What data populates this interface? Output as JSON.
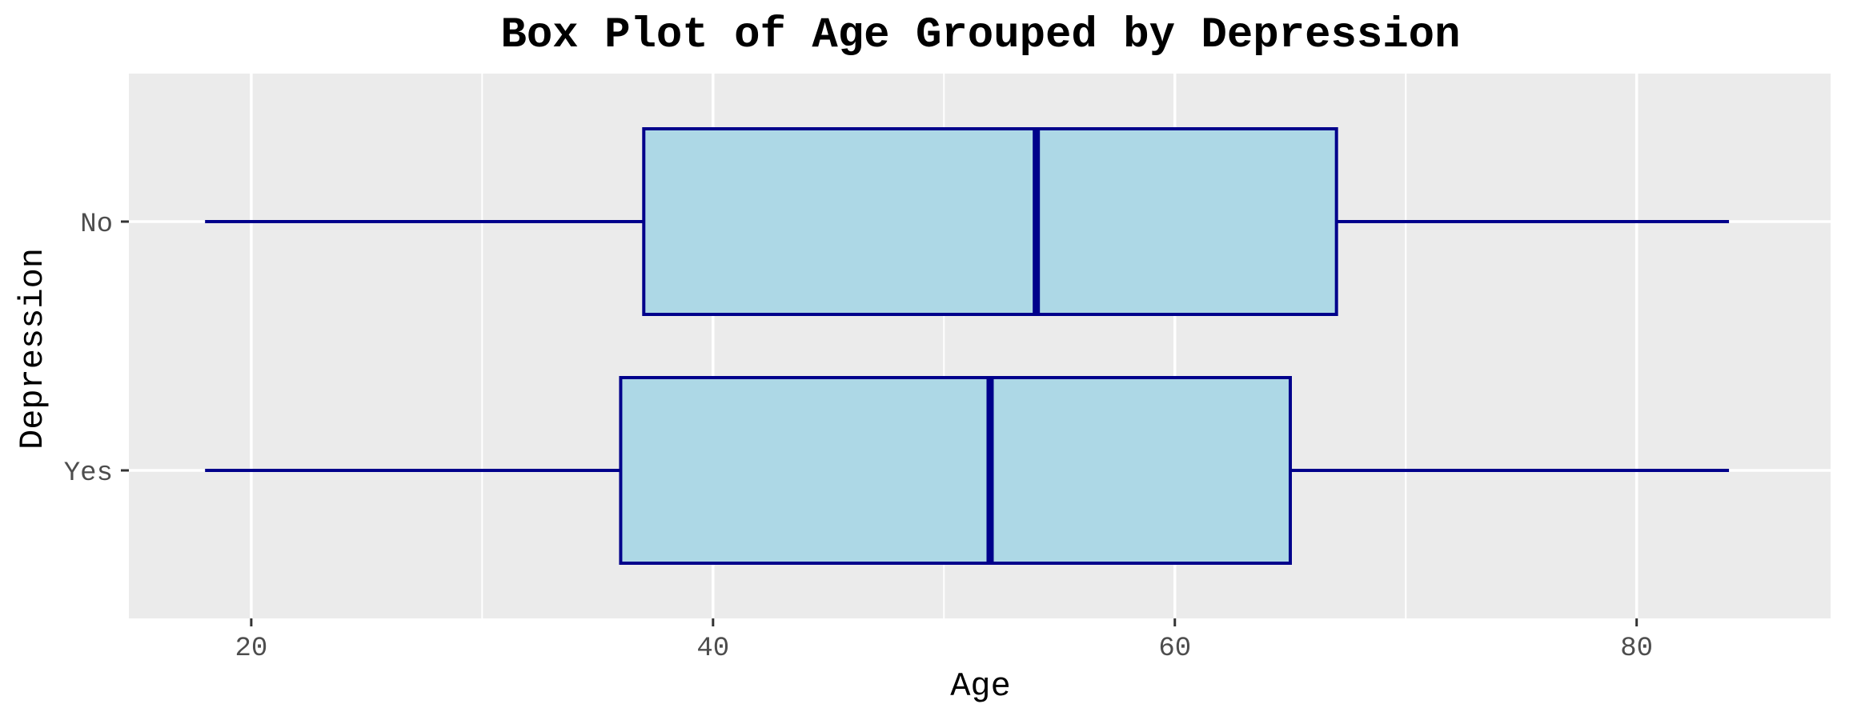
{
  "chart_data": {
    "type": "boxplot",
    "orientation": "horizontal",
    "title": "Box Plot of Age Grouped by Depression",
    "xlabel": "Age",
    "ylabel": "Depression",
    "xlim": [
      14.7,
      88.4
    ],
    "x_ticks": [
      20,
      40,
      60,
      80
    ],
    "x_tick_labels": [
      "20",
      "40",
      "60",
      "80"
    ],
    "grid": true,
    "categories": [
      "No",
      "Yes"
    ],
    "boxes": [
      {
        "category": "No",
        "min": 18,
        "q1": 37,
        "median": 54,
        "q3": 67,
        "max": 84
      },
      {
        "category": "Yes",
        "min": 18,
        "q1": 36,
        "median": 52,
        "q3": 65,
        "max": 84
      }
    ],
    "colors": {
      "panel": "#ebebeb",
      "grid": "#ffffff",
      "box_fill": "#add8e6",
      "box_stroke": "#00008b",
      "tick": "#333333"
    }
  }
}
